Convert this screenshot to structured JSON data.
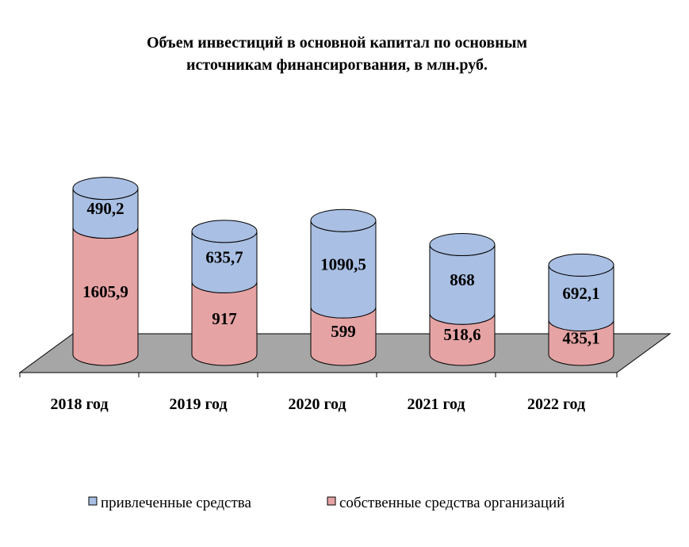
{
  "chart_data": {
    "type": "bar",
    "stacked": true,
    "bar_shape": "cylinder",
    "title": "Объем инвестиций в основной капитал по основным источникам финансирогвания, в млн.руб.",
    "title_lines": [
      "Объем инвестиций в основной капитал по основным",
      "источникам финансирогвания, в млн.руб."
    ],
    "categories": [
      "2018 год",
      "2019 год",
      "2020 год",
      "2021 год",
      "2022 год"
    ],
    "series": [
      {
        "name": "собственные средства организаций",
        "color": "#e6a3a4",
        "values": [
          1605.9,
          917,
          599,
          518.6,
          435.1
        ],
        "labels": [
          "1605,9",
          "917",
          "599",
          "518,6",
          "435,1"
        ]
      },
      {
        "name": "привлеченные средства",
        "color": "#a9bfe3",
        "values": [
          490.2,
          635.7,
          1090.5,
          868,
          692.1
        ],
        "labels": [
          "490,2",
          "635,7",
          "1090,5",
          "868",
          "692,1"
        ]
      }
    ],
    "legend": {
      "placement": "bottom",
      "order": [
        "привлеченные средства",
        "собственные средства организаций"
      ]
    },
    "floor_color": "#a6a6a6",
    "grid": false
  }
}
